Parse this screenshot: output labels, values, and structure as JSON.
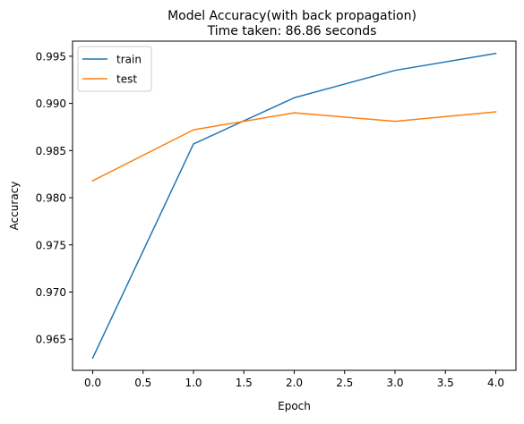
{
  "chart_data": {
    "type": "line",
    "title_line1": "Model Accuracy(with back propagation)",
    "title_line2": "Time taken: 86.86 seconds",
    "xlabel": "Epoch",
    "ylabel": "Accuracy",
    "xlim": [
      -0.2,
      4.2
    ],
    "ylim": [
      0.9617,
      0.9966
    ],
    "x_ticks": [
      0.0,
      0.5,
      1.0,
      1.5,
      2.0,
      2.5,
      3.0,
      3.5,
      4.0
    ],
    "x_tick_labels": [
      "0.0",
      "0.5",
      "1.0",
      "1.5",
      "2.0",
      "2.5",
      "3.0",
      "3.5",
      "4.0"
    ],
    "y_ticks": [
      0.965,
      0.97,
      0.975,
      0.98,
      0.985,
      0.99,
      0.995
    ],
    "y_tick_labels": [
      "0.965",
      "0.970",
      "0.975",
      "0.980",
      "0.985",
      "0.990",
      "0.995"
    ],
    "grid": false,
    "legend_position": "top-left",
    "x": [
      0,
      1,
      2,
      3,
      4
    ],
    "series": [
      {
        "name": "train",
        "color": "#1f77b4",
        "values": [
          0.963,
          0.9857,
          0.9906,
          0.9935,
          0.9953
        ]
      },
      {
        "name": "test",
        "color": "#ff7f0e",
        "values": [
          0.9818,
          0.9872,
          0.989,
          0.9881,
          0.9891
        ]
      }
    ]
  }
}
